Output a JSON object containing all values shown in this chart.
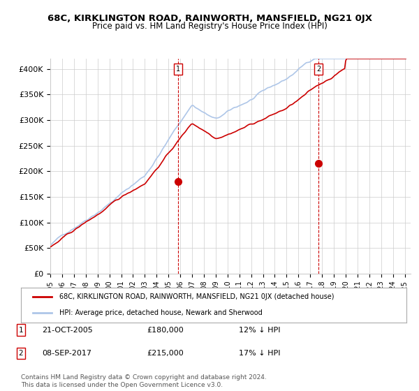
{
  "title": "68C, KIRKLINGTON ROAD, RAINWORTH, MANSFIELD, NG21 0JX",
  "subtitle": "Price paid vs. HM Land Registry's House Price Index (HPI)",
  "ylabel_ticks": [
    "£0",
    "£50K",
    "£100K",
    "£150K",
    "£200K",
    "£250K",
    "£300K",
    "£350K",
    "£400K"
  ],
  "ytick_values": [
    0,
    50000,
    100000,
    150000,
    200000,
    250000,
    300000,
    350000,
    400000
  ],
  "ylim": [
    0,
    420000
  ],
  "xlim_start": 1995,
  "xlim_end": 2025.5,
  "hpi_color": "#aec6e8",
  "price_color": "#cc0000",
  "marker1_date": 2005.8,
  "marker1_price": 180000,
  "marker2_date": 2017.7,
  "marker2_price": 215000,
  "vline_color": "#cc0000",
  "vline_style": "--",
  "background_color": "#ffffff",
  "grid_color": "#cccccc",
  "legend_label_red": "68C, KIRKLINGTON ROAD, RAINWORTH, MANSFIELD, NG21 0JX (detached house)",
  "legend_label_blue": "HPI: Average price, detached house, Newark and Sherwood",
  "note1_label": "1",
  "note1_date": "21-OCT-2005",
  "note1_price": "£180,000",
  "note1_hpi": "12% ↓ HPI",
  "note2_label": "2",
  "note2_date": "08-SEP-2017",
  "note2_price": "£215,000",
  "note2_hpi": "17% ↓ HPI",
  "footer": "Contains HM Land Registry data © Crown copyright and database right 2024.\nThis data is licensed under the Open Government Licence v3.0."
}
